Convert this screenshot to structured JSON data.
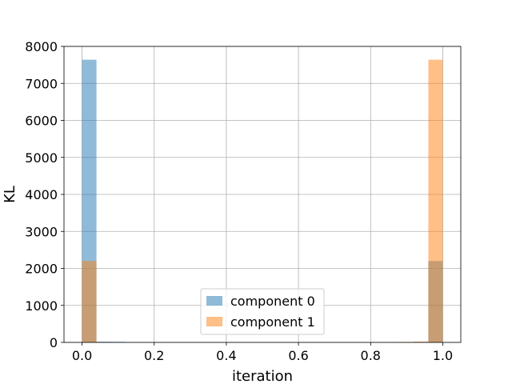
{
  "chart_data": {
    "type": "bar",
    "title": "",
    "xlabel": "iteration",
    "ylabel": "KL",
    "xlim": [
      -0.05,
      1.05
    ],
    "ylim": [
      0,
      8000
    ],
    "xticks": [
      "0.0",
      "0.2",
      "0.4",
      "0.6",
      "0.8",
      "1.0"
    ],
    "yticks": [
      "0",
      "1000",
      "2000",
      "3000",
      "4000",
      "5000",
      "6000",
      "7000",
      "8000"
    ],
    "grid": true,
    "legend_position": "lower center",
    "bin_width": 0.04,
    "series": [
      {
        "name": "component 0",
        "color": "#1f77b4",
        "opacity": 0.5,
        "bins": [
          {
            "x": 0.0,
            "value": 7640
          },
          {
            "x": 0.04,
            "value": 18
          },
          {
            "x": 0.08,
            "value": 15
          },
          {
            "x": 0.96,
            "value": 2200
          }
        ]
      },
      {
        "name": "component 1",
        "color": "#ff7f0e",
        "opacity": 0.5,
        "bins": [
          {
            "x": 0.0,
            "value": 2200
          },
          {
            "x": 0.88,
            "value": 12
          },
          {
            "x": 0.92,
            "value": 22
          },
          {
            "x": 0.96,
            "value": 7640
          }
        ]
      }
    ]
  }
}
